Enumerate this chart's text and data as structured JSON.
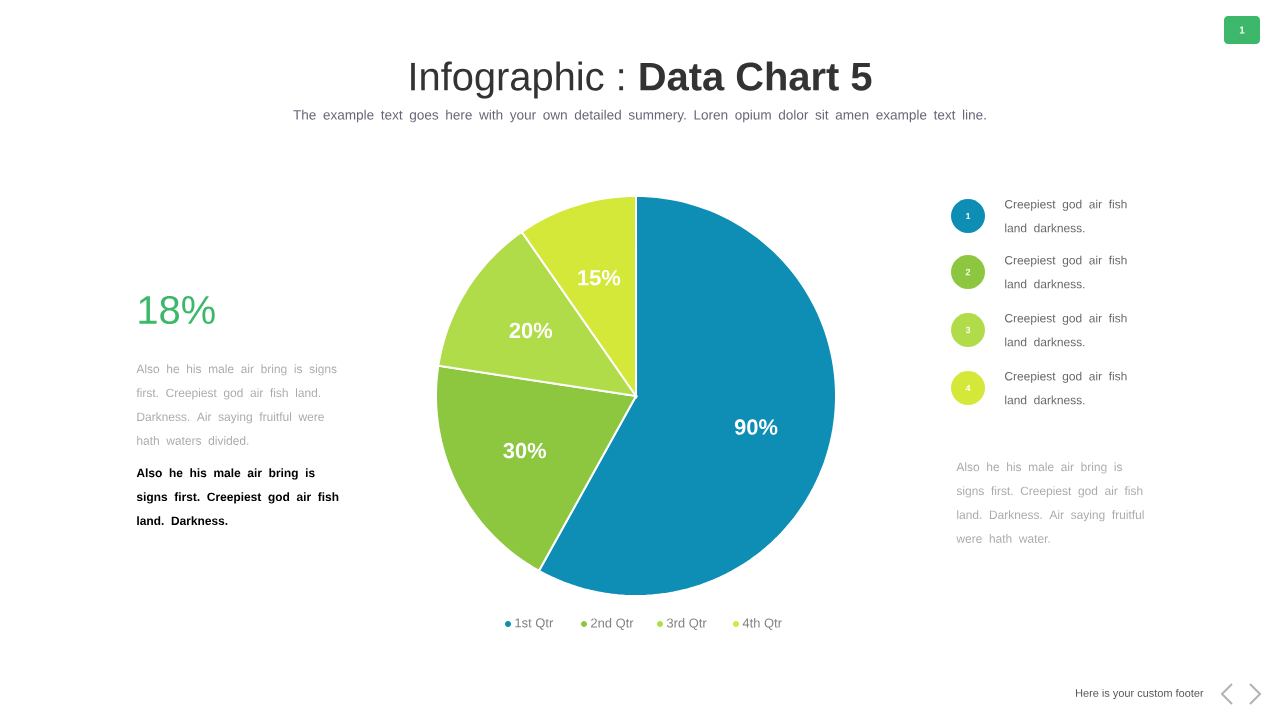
{
  "chart_data": {
    "type": "pie",
    "title": "Infographic : **Data Chart 5**",
    "subtitle": "The example text goes here with your own detailed summery. Loren opium dolor sit amen example text line.",
    "categories": [
      "1st Qtr",
      "2nd Qtr",
      "3rd Qtr",
      "4th Qtr"
    ],
    "values": [
      90,
      30,
      20,
      15
    ],
    "colors": [
      "#0e8db5",
      "#8dc63f",
      "#b0dc4a",
      "#d4e83a"
    ],
    "value_labels": [
      "90%",
      "30%",
      "20%",
      "15%"
    ],
    "legend": "bottom",
    "annotations": [
      "18%",
      "Also he his male air bring is signs first. Creepiest god air fish land. Darkness. Air saying fruitful were hath waters divided.",
      "**Also he his male air bring is signs first. Creepiest god air fish land. Darkness.**",
      "Creepiest god air fish land darkness.",
      "Creepiest god air fish land darkness.",
      "Creepiest god air fish land darkness.",
      "Creepiest god air fish land darkness.",
      "Also he his male air bring is signs first. Creepiest god air fish land. Darkness. Air saying fruitful were hath water.",
      "Here is your custom footer",
      "1",
      "1",
      "2",
      "3",
      "4"
    ]
  }
}
